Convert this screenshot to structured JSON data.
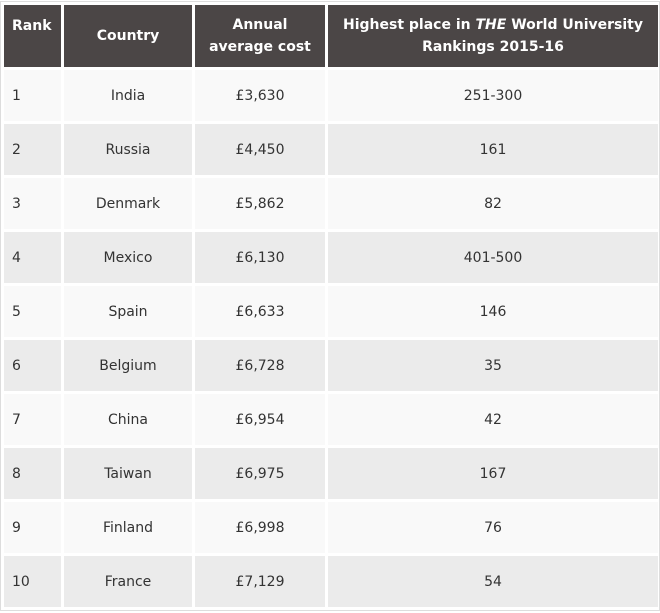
{
  "table": {
    "header": [
      "Rank",
      "Country",
      "Annual average cost",
      {
        "before": "Highest place in",
        "italic": "THE",
        "after": "World University Rankings 2015-16"
      }
    ],
    "rows": [
      [
        "1",
        "India",
        "£3,630",
        "251-300"
      ],
      [
        "2",
        "Russia",
        "£4,450",
        "161"
      ],
      [
        "3",
        "Denmark",
        "£5,862",
        "82"
      ],
      [
        "4",
        "Mexico",
        "£6,130",
        "401-500"
      ],
      [
        "5",
        "Spain",
        "£6,633",
        "146"
      ],
      [
        "6",
        "Belgium",
        "£6,728",
        "35"
      ],
      [
        "7",
        "China",
        "£6,954",
        "42"
      ],
      [
        "8",
        "Taiwan",
        "£6,975",
        "167"
      ],
      [
        "9",
        "Finland",
        "£6,998",
        "76"
      ],
      [
        "10",
        "France",
        "£7,129",
        "54"
      ]
    ]
  }
}
